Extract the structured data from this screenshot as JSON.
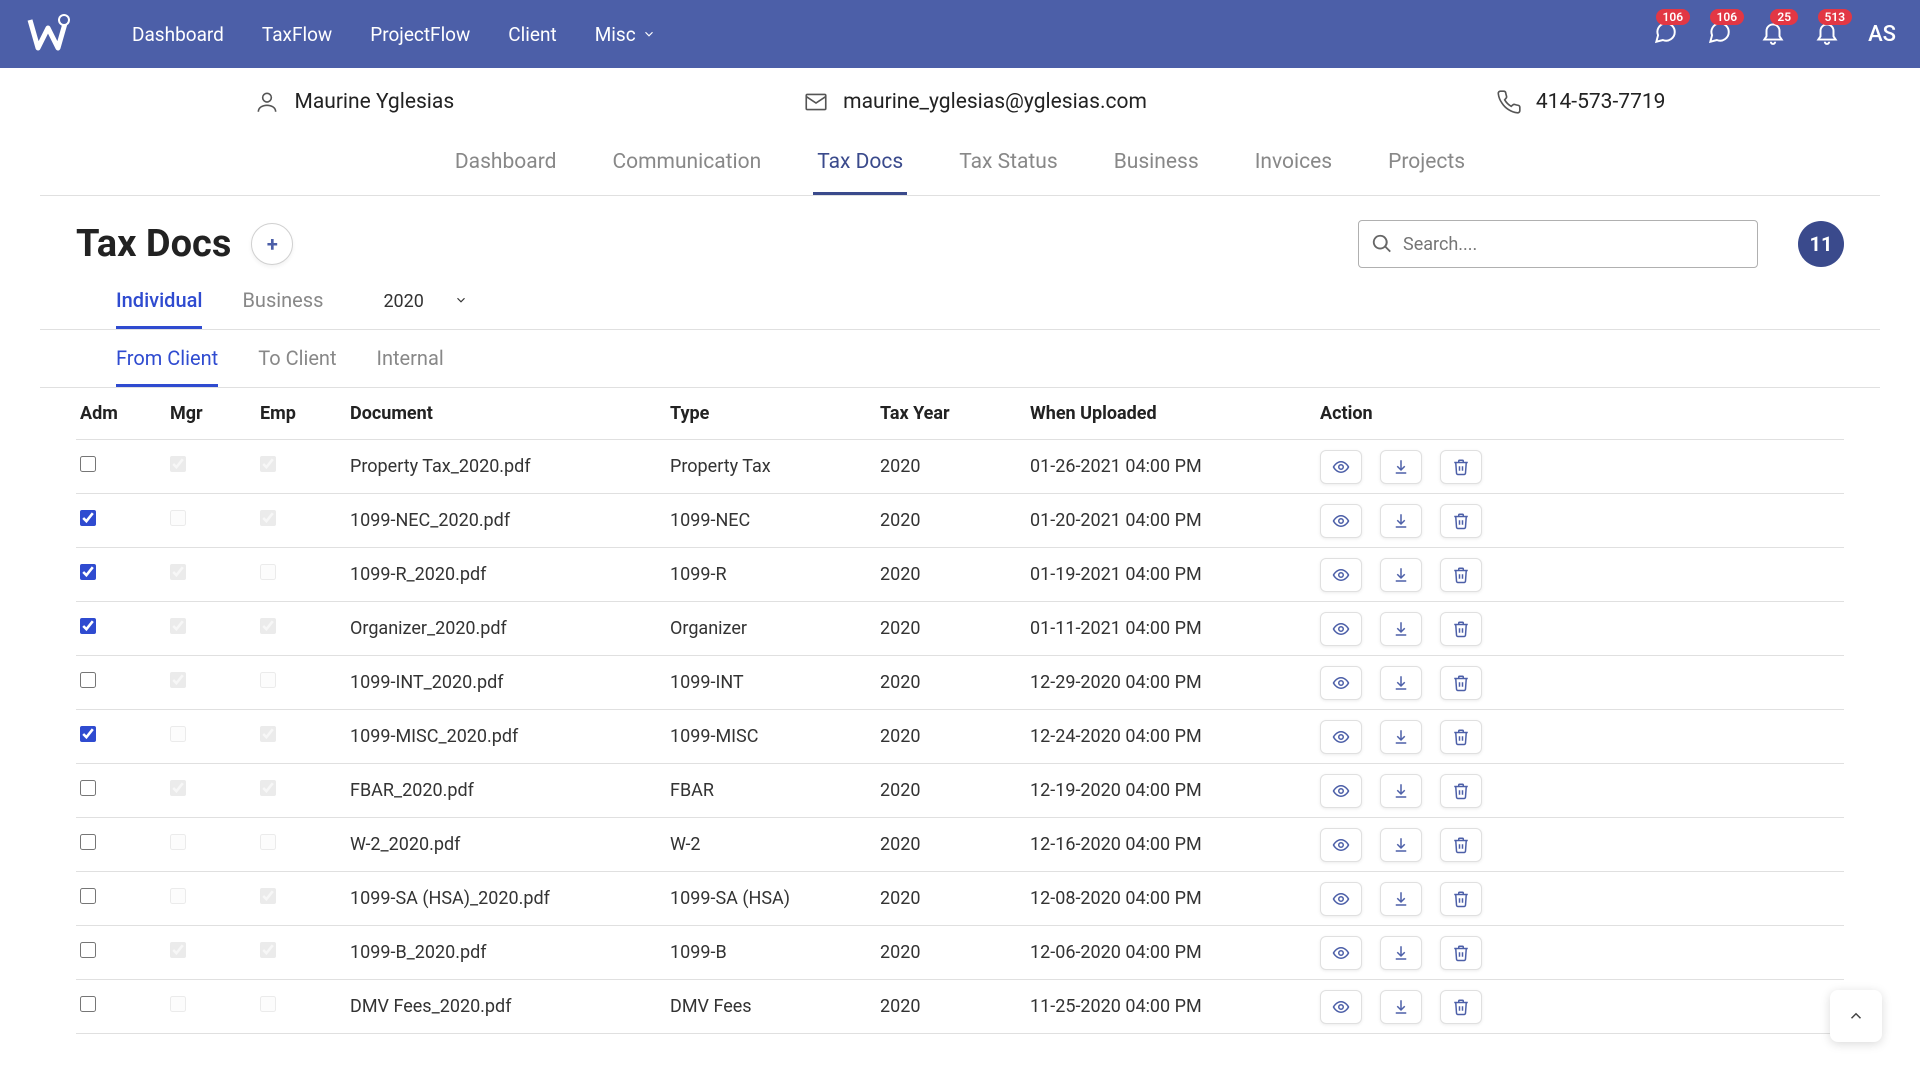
{
  "colors": {
    "primary": "#4c5fa8",
    "accent": "#2f4bd0",
    "badge": "#e23744",
    "border": "#e0e0e0"
  },
  "topnav": {
    "links": [
      "Dashboard",
      "TaxFlow",
      "ProjectFlow",
      "Client",
      "Misc"
    ],
    "badges": {
      "chat1": "106",
      "chat2": "106",
      "bell1": "25",
      "bell2": "513"
    },
    "user_initials": "AS"
  },
  "contact": {
    "name": "Maurine Yglesias",
    "email": "maurine_yglesias@yglesias.com",
    "phone": "414-573-7719"
  },
  "subtabs": [
    "Dashboard",
    "Communication",
    "Tax Docs",
    "Tax Status",
    "Business",
    "Invoices",
    "Projects"
  ],
  "subtab_active_index": 2,
  "page_title": "Tax Docs",
  "search_placeholder": "Search....",
  "count_bubble": "11",
  "type_tabs": [
    "Individual",
    "Business"
  ],
  "type_tab_active_index": 0,
  "year": "2020",
  "dir_tabs": [
    "From Client",
    "To Client",
    "Internal"
  ],
  "dir_tab_active_index": 0,
  "columns": [
    "Adm",
    "Mgr",
    "Emp",
    "Document",
    "Type",
    "Tax Year",
    "When Uploaded",
    "Action"
  ],
  "rows": [
    {
      "adm": false,
      "mgr_checked": true,
      "mgr_disabled": true,
      "emp_checked": true,
      "emp_disabled": true,
      "doc": "Property Tax_2020.pdf",
      "type": "Property Tax",
      "year": "2020",
      "uploaded": "01-26-2021 04:00 PM"
    },
    {
      "adm": true,
      "mgr_checked": false,
      "mgr_disabled": true,
      "emp_checked": true,
      "emp_disabled": true,
      "doc": "1099-NEC_2020.pdf",
      "type": "1099-NEC",
      "year": "2020",
      "uploaded": "01-20-2021 04:00 PM"
    },
    {
      "adm": true,
      "mgr_checked": true,
      "mgr_disabled": true,
      "emp_checked": false,
      "emp_disabled": true,
      "doc": "1099-R_2020.pdf",
      "type": "1099-R",
      "year": "2020",
      "uploaded": "01-19-2021 04:00 PM"
    },
    {
      "adm": true,
      "mgr_checked": true,
      "mgr_disabled": true,
      "emp_checked": true,
      "emp_disabled": true,
      "doc": "Organizer_2020.pdf",
      "type": "Organizer",
      "year": "2020",
      "uploaded": "01-11-2021 04:00 PM"
    },
    {
      "adm": false,
      "mgr_checked": true,
      "mgr_disabled": true,
      "emp_checked": false,
      "emp_disabled": true,
      "doc": "1099-INT_2020.pdf",
      "type": "1099-INT",
      "year": "2020",
      "uploaded": "12-29-2020 04:00 PM"
    },
    {
      "adm": true,
      "mgr_checked": false,
      "mgr_disabled": true,
      "emp_checked": true,
      "emp_disabled": true,
      "doc": "1099-MISC_2020.pdf",
      "type": "1099-MISC",
      "year": "2020",
      "uploaded": "12-24-2020 04:00 PM"
    },
    {
      "adm": false,
      "mgr_checked": true,
      "mgr_disabled": true,
      "emp_checked": true,
      "emp_disabled": true,
      "doc": "FBAR_2020.pdf",
      "type": "FBAR",
      "year": "2020",
      "uploaded": "12-19-2020 04:00 PM"
    },
    {
      "adm": false,
      "mgr_checked": false,
      "mgr_disabled": true,
      "emp_checked": false,
      "emp_disabled": true,
      "doc": "W-2_2020.pdf",
      "type": "W-2",
      "year": "2020",
      "uploaded": "12-16-2020 04:00 PM"
    },
    {
      "adm": false,
      "mgr_checked": false,
      "mgr_disabled": true,
      "emp_checked": true,
      "emp_disabled": true,
      "doc": "1099-SA (HSA)_2020.pdf",
      "type": "1099-SA (HSA)",
      "year": "2020",
      "uploaded": "12-08-2020 04:00 PM"
    },
    {
      "adm": false,
      "mgr_checked": true,
      "mgr_disabled": true,
      "emp_checked": true,
      "emp_disabled": true,
      "doc": "1099-B_2020.pdf",
      "type": "1099-B",
      "year": "2020",
      "uploaded": "12-06-2020 04:00 PM"
    },
    {
      "adm": false,
      "mgr_checked": false,
      "mgr_disabled": true,
      "emp_checked": false,
      "emp_disabled": true,
      "doc": "DMV Fees_2020.pdf",
      "type": "DMV Fees",
      "year": "2020",
      "uploaded": "11-25-2020 04:00 PM"
    }
  ]
}
